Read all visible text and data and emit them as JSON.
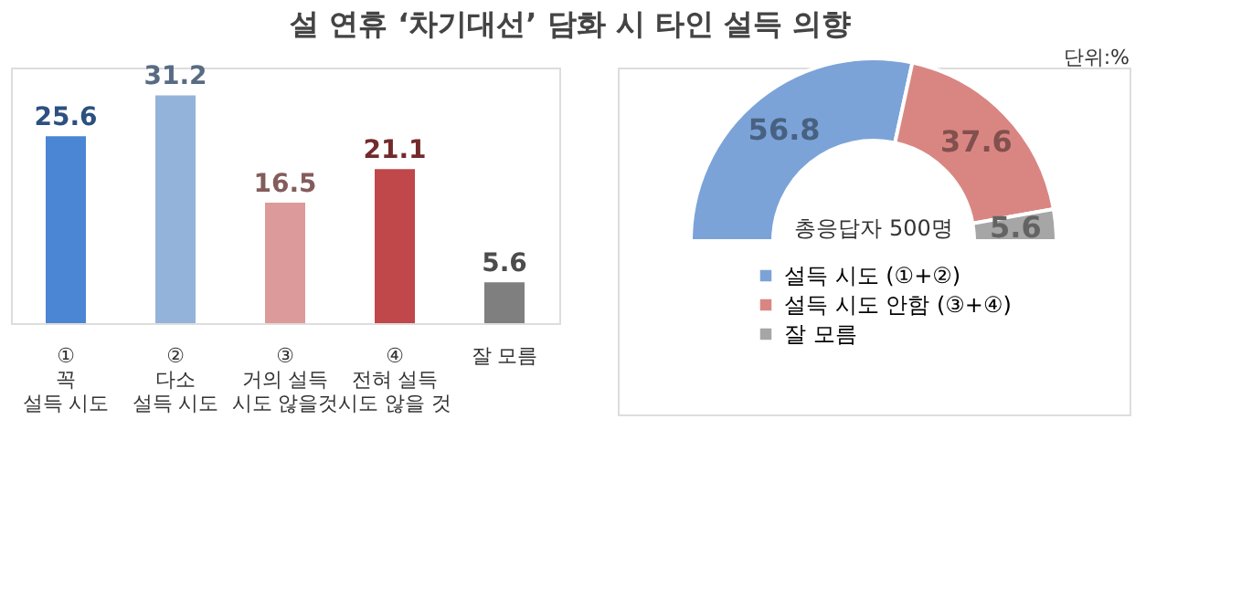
{
  "chart_data": [
    {
      "type": "bar",
      "title": "설 연휴 ‘차기대선’ 담화 시 타인 설득 의향",
      "categories": [
        "①\n꼭\n설득 시도",
        "②\n다소\n설득 시도",
        "③\n거의 설득\n시도 않을것",
        "④\n전혀 설득\n시도 않을 것",
        "잘 모름"
      ],
      "values": [
        25.6,
        31.2,
        16.5,
        21.1,
        5.6
      ],
      "colors": [
        "#4a86d4",
        "#93b3db",
        "#dc9a9a",
        "#c0474a",
        "#7f7f7f"
      ],
      "data_labels": true
    },
    {
      "type": "donut",
      "categories": [
        "설득 시도 (①+②)",
        "설득 시도 안함 (③+④)",
        "잘 모름"
      ],
      "values": [
        56.8,
        37.6,
        5.6
      ],
      "colors": [
        "#7ba3d8",
        "#d98682",
        "#a6a6a6"
      ],
      "data_labels": true,
      "legend": "bottom",
      "annotations": [
        "단위:%",
        "총응답자 500명"
      ]
    }
  ]
}
